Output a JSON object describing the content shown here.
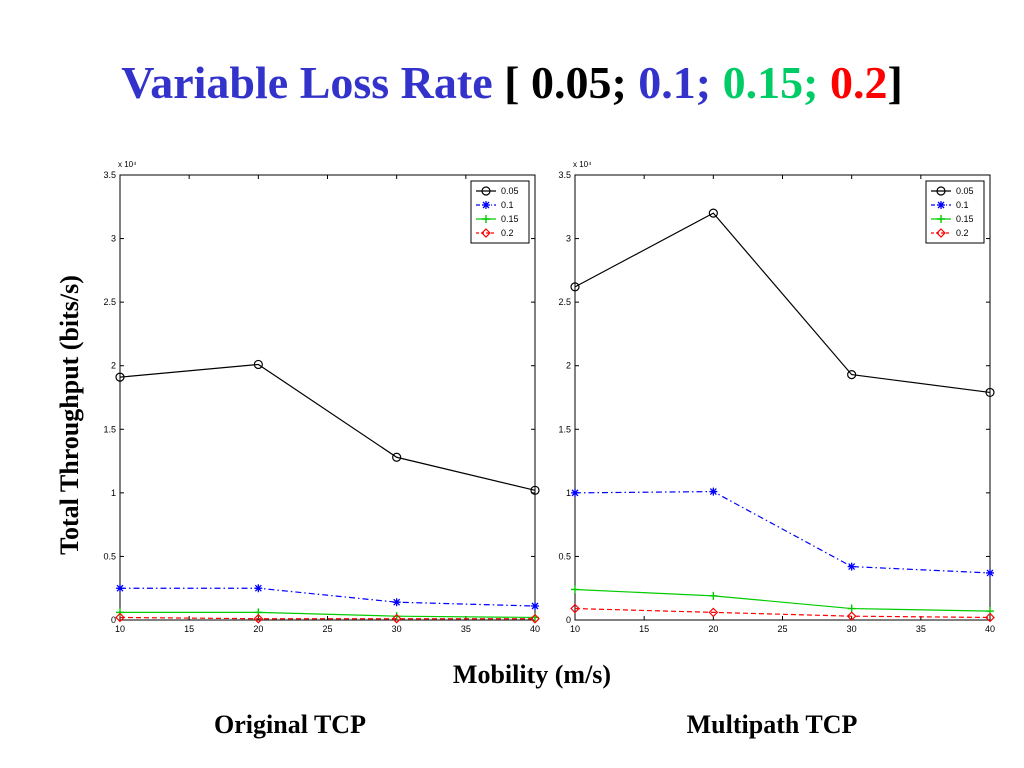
{
  "title": {
    "main": "Variable Loss Rate",
    "bracket_open": " [ ",
    "values": [
      "0.05;",
      "0.1;",
      "0.15;",
      "0.2"
    ],
    "bracket_close": "]",
    "colors": {
      "main": "#3333cc",
      "v0": "#000000",
      "v1": "#3333cc",
      "v2": "#00cc66",
      "v3": "#ff0000",
      "bracket": "#000000"
    }
  },
  "ylabel": "Total Throughput (bits/s)",
  "xlabel": "Mobility (m/s)",
  "captions": {
    "left": "Original TCP",
    "right": "Multipath TCP"
  },
  "chart_data": [
    {
      "type": "line",
      "caption": "Original TCP",
      "multiplier": "x 10⁴",
      "x_ticks": [
        "10",
        "15",
        "20",
        "25",
        "30",
        "35",
        "40"
      ],
      "y_ticks": [
        "0",
        "0.5",
        "1",
        "1.5",
        "2",
        "2.5",
        "3",
        "3.5"
      ],
      "xlim": [
        10,
        40
      ],
      "ylim": [
        0,
        3.5
      ],
      "legend_position": "top-right",
      "series": [
        {
          "name": "0.05",
          "color": "#000000",
          "marker": "circle",
          "dash": "solid",
          "x": [
            10,
            20,
            30,
            40
          ],
          "y": [
            1.91,
            2.01,
            1.28,
            1.02
          ]
        },
        {
          "name": "0.1",
          "color": "#0000ff",
          "marker": "star",
          "dash": "dashdot",
          "x": [
            10,
            20,
            30,
            40
          ],
          "y": [
            0.25,
            0.25,
            0.14,
            0.11
          ]
        },
        {
          "name": "0.15",
          "color": "#00cc00",
          "marker": "plus",
          "dash": "solid",
          "x": [
            10,
            20,
            30,
            40
          ],
          "y": [
            0.06,
            0.06,
            0.03,
            0.02
          ]
        },
        {
          "name": "0.2",
          "color": "#ff0000",
          "marker": "diamond",
          "dash": "dashed",
          "x": [
            10,
            20,
            30,
            40
          ],
          "y": [
            0.02,
            0.01,
            0.01,
            0.01
          ]
        }
      ]
    },
    {
      "type": "line",
      "caption": "Multipath TCP",
      "multiplier": "x 10⁴",
      "x_ticks": [
        "10",
        "15",
        "20",
        "25",
        "30",
        "35",
        "40"
      ],
      "y_ticks": [
        "0",
        "0.5",
        "1",
        "1.5",
        "2",
        "2.5",
        "3",
        "3.5"
      ],
      "xlim": [
        10,
        40
      ],
      "ylim": [
        0,
        3.5
      ],
      "legend_position": "top-right",
      "series": [
        {
          "name": "0.05",
          "color": "#000000",
          "marker": "circle",
          "dash": "solid",
          "x": [
            10,
            20,
            30,
            40
          ],
          "y": [
            2.62,
            3.2,
            1.93,
            1.79
          ]
        },
        {
          "name": "0.1",
          "color": "#0000ff",
          "marker": "star",
          "dash": "dashdot",
          "x": [
            10,
            20,
            30,
            40
          ],
          "y": [
            1.0,
            1.01,
            0.42,
            0.37
          ]
        },
        {
          "name": "0.15",
          "color": "#00cc00",
          "marker": "plus",
          "dash": "solid",
          "x": [
            10,
            20,
            30,
            40
          ],
          "y": [
            0.24,
            0.19,
            0.09,
            0.07
          ]
        },
        {
          "name": "0.2",
          "color": "#ff0000",
          "marker": "diamond",
          "dash": "dashed",
          "x": [
            10,
            20,
            30,
            40
          ],
          "y": [
            0.09,
            0.06,
            0.03,
            0.02
          ]
        }
      ]
    }
  ]
}
